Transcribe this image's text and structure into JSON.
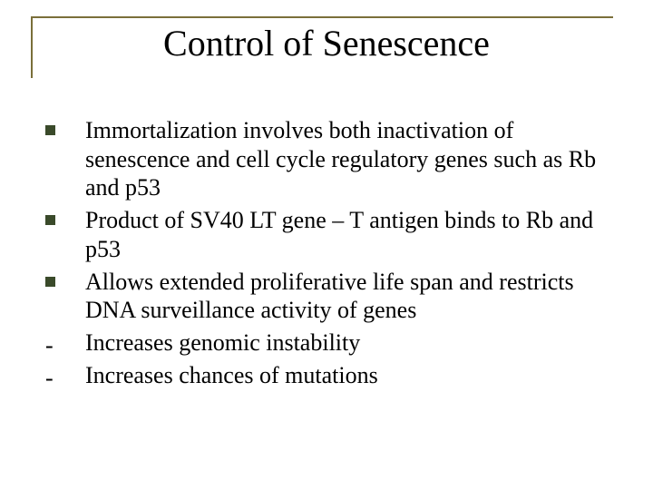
{
  "slide": {
    "title": "Control of Senescence",
    "title_fontsize": 40,
    "title_color": "#000000",
    "frame_color": "#7a6f3a",
    "background_color": "#ffffff",
    "body_fontsize": 26,
    "body_color": "#000000",
    "bullet_square_color": "#3a4a2a",
    "bullet_square_size": 11,
    "items": [
      {
        "marker": "square",
        "text": "Immortalization involves both inactivation of senescence and cell cycle regulatory genes such as Rb and p53"
      },
      {
        "marker": "square",
        "text": "Product of SV40 LT gene – T antigen binds to Rb and p53"
      },
      {
        "marker": "square",
        "text": "Allows extended proliferative life span and restricts DNA surveillance activity of genes"
      },
      {
        "marker": "dash",
        "text": "Increases genomic instability"
      },
      {
        "marker": "dash",
        "text": "Increases chances of mutations"
      }
    ]
  }
}
